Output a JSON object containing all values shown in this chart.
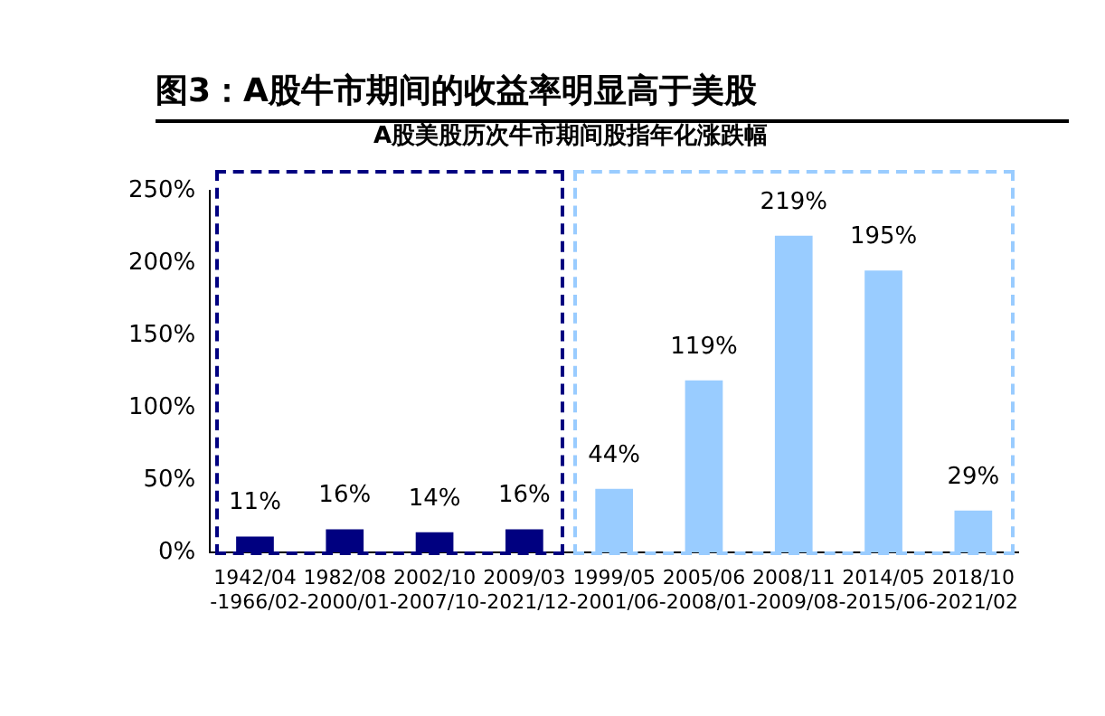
{
  "chart_data": {
    "type": "bar",
    "title": "A股美股历次牛市期间股指年化涨跌幅",
    "subtitle": "图3：A股牛市期间的收益率明显高于美股",
    "categories": [
      "1942/04-1966/02",
      "1982/08-2000/01",
      "2002/10-2007/10",
      "2009/03-2021/12",
      "1999/05-2001/06",
      "2005/06-2008/01",
      "2008/11-2009/08",
      "2014/05-2015/06",
      "2018/10-2021/02"
    ],
    "values": [
      11,
      16,
      14,
      16,
      44,
      119,
      219,
      195,
      29
    ],
    "colors": [
      "#000080",
      "#000080",
      "#000080",
      "#000080",
      "#99ccff",
      "#99ccff",
      "#99ccff",
      "#99ccff",
      "#99ccff"
    ],
    "value_labels": [
      "11%",
      "16%",
      "14%",
      "16%",
      "44%",
      "119%",
      "219%",
      "195%",
      "29%"
    ],
    "ylim": [
      0,
      250
    ],
    "yticks": [
      {
        "value": 0,
        "label": "0%"
      },
      {
        "value": 50,
        "label": "50%"
      },
      {
        "value": 100,
        "label": "100%"
      },
      {
        "value": 150,
        "label": "150%"
      },
      {
        "value": 200,
        "label": "200%"
      },
      {
        "value": 250,
        "label": "250%"
      }
    ],
    "grid": false,
    "legend": false
  }
}
